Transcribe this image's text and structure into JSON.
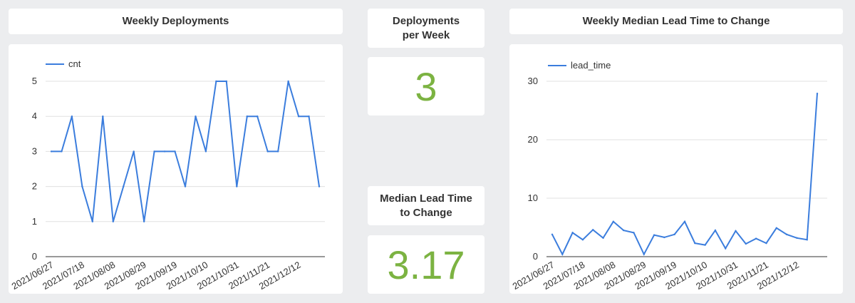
{
  "colors": {
    "line": "#3b7ddd",
    "kpi": "#7cb342",
    "background": "#ecedef"
  },
  "cards": {
    "weekly_deployments_title": "Weekly Deployments",
    "deployments_per_week_title": "Deployments per Week",
    "deployments_per_week_value": "3",
    "median_lead_time_title": "Median Lead Time to Change",
    "median_lead_time_value": "3.17",
    "weekly_lead_time_title": "Weekly Median Lead Time to Change"
  },
  "chart_data": [
    {
      "type": "line",
      "title": "Weekly Deployments",
      "legend": "top-left",
      "grid": true,
      "ylim": [
        0,
        5
      ],
      "yticks": [
        0,
        1,
        2,
        3,
        4,
        5
      ],
      "x_tick_labels": [
        "2021/06/27",
        "2021/07/18",
        "2021/08/08",
        "2021/08/29",
        "2021/09/19",
        "2021/10/10",
        "2021/10/31",
        "2021/11/21",
        "2021/12/12"
      ],
      "x_tick_every": 3,
      "series": [
        {
          "name": "cnt",
          "values": [
            3,
            3,
            4,
            2,
            1,
            4,
            1,
            2,
            3,
            1,
            3,
            3,
            3,
            2,
            4,
            3,
            5,
            5,
            2,
            4,
            4,
            3,
            3,
            5,
            4,
            4,
            2
          ]
        }
      ]
    },
    {
      "type": "line",
      "title": "Weekly Median Lead Time to Change",
      "legend": "top-left",
      "grid": true,
      "ylim": [
        0,
        30
      ],
      "yticks": [
        0,
        10,
        20,
        30
      ],
      "x_tick_labels": [
        "2021/06/27",
        "2021/07/18",
        "2021/08/08",
        "2021/08/29",
        "2021/09/19",
        "2021/10/10",
        "2021/10/31",
        "2021/11/21",
        "2021/12/12"
      ],
      "x_tick_every": 3,
      "series": [
        {
          "name": "lead_time",
          "values": [
            3.8,
            0.4,
            4.1,
            2.9,
            4.6,
            3.2,
            6.0,
            4.5,
            4.1,
            0.4,
            3.7,
            3.3,
            3.8,
            6.0,
            2.3,
            2.0,
            4.5,
            1.4,
            4.4,
            2.2,
            3.1,
            2.3,
            4.9,
            3.8,
            3.2,
            2.9,
            27.9
          ]
        }
      ]
    }
  ]
}
